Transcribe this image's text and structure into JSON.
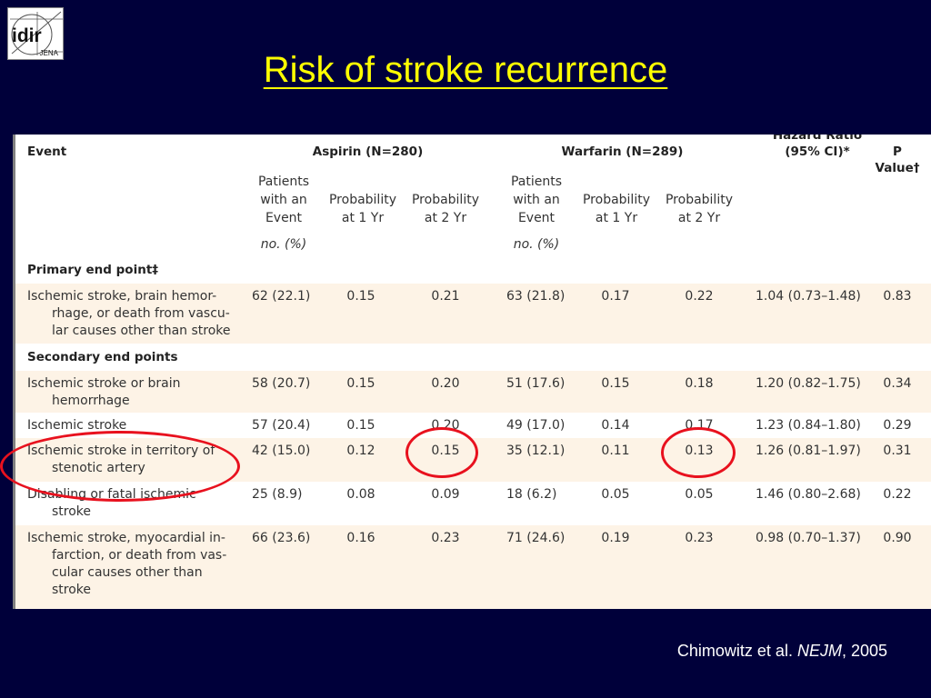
{
  "logo": {
    "main": "idir",
    "sub": "JENA"
  },
  "slide": {
    "title": "Risk of stroke recurrence"
  },
  "table": {
    "header": {
      "event": "Event",
      "aspirin": "Aspirin (N=280)",
      "warfarin": "Warfarin (N=289)",
      "hazard_line1": "Hazard Ratio",
      "hazard_line2": "(95% CI)*",
      "pvalue": "P Value†"
    },
    "subheaders": {
      "patients": [
        "Patients",
        "with an",
        "Event"
      ],
      "prob1": [
        "Probability",
        "at 1 Yr"
      ],
      "prob2": [
        "Probability",
        "at 2 Yr"
      ],
      "unit": "no. (%)"
    },
    "sections": {
      "primary": "Primary end point‡",
      "secondary": "Secondary end points"
    },
    "rows": [
      {
        "event": [
          "Ischemic stroke, brain hemor-",
          "rhage, or death from vascu-",
          "lar causes other than stroke"
        ],
        "a_n": "62 (22.1)",
        "a_p1": "0.15",
        "a_p2": "0.21",
        "w_n": "63 (21.8)",
        "w_p1": "0.17",
        "w_p2": "0.22",
        "hr": "1.04 (0.73–1.48)",
        "p": "0.83"
      },
      {
        "event": [
          "Ischemic stroke or brain",
          "hemorrhage"
        ],
        "a_n": "58 (20.7)",
        "a_p1": "0.15",
        "a_p2": "0.20",
        "w_n": "51 (17.6)",
        "w_p1": "0.15",
        "w_p2": "0.18",
        "hr": "1.20 (0.82–1.75)",
        "p": "0.34"
      },
      {
        "event": [
          "Ischemic stroke"
        ],
        "a_n": "57 (20.4)",
        "a_p1": "0.15",
        "a_p2": "0.20",
        "w_n": "49 (17.0)",
        "w_p1": "0.14",
        "w_p2": "0.17",
        "hr": "1.23 (0.84–1.80)",
        "p": "0.29"
      },
      {
        "event": [
          "Ischemic stroke in territory of",
          "stenotic artery"
        ],
        "a_n": "42 (15.0)",
        "a_p1": "0.12",
        "a_p2": "0.15",
        "w_n": "35 (12.1)",
        "w_p1": "0.11",
        "w_p2": "0.13",
        "hr": "1.26 (0.81–1.97)",
        "p": "0.31"
      },
      {
        "event": [
          "Disabling or fatal ischemic",
          "stroke"
        ],
        "a_n": "25 (8.9)",
        "a_p1": "0.08",
        "a_p2": "0.09",
        "w_n": "18 (6.2)",
        "w_p1": "0.05",
        "w_p2": "0.05",
        "hr": "1.46 (0.80–2.68)",
        "p": "0.22"
      },
      {
        "event": [
          "Ischemic stroke, myocardial in-",
          "farction, or death from vas-",
          "cular causes other than",
          "stroke"
        ],
        "a_n": "66 (23.6)",
        "a_p1": "0.16",
        "a_p2": "0.23",
        "w_n": "71 (24.6)",
        "w_p1": "0.19",
        "w_p2": "0.23",
        "hr": "0.98 (0.70–1.37)",
        "p": "0.90"
      }
    ]
  },
  "annotation": {
    "color": "#e8111e"
  },
  "citation": {
    "authors": "Chimowitz et al. ",
    "journal": "NEJM",
    "year": ", 2005"
  }
}
